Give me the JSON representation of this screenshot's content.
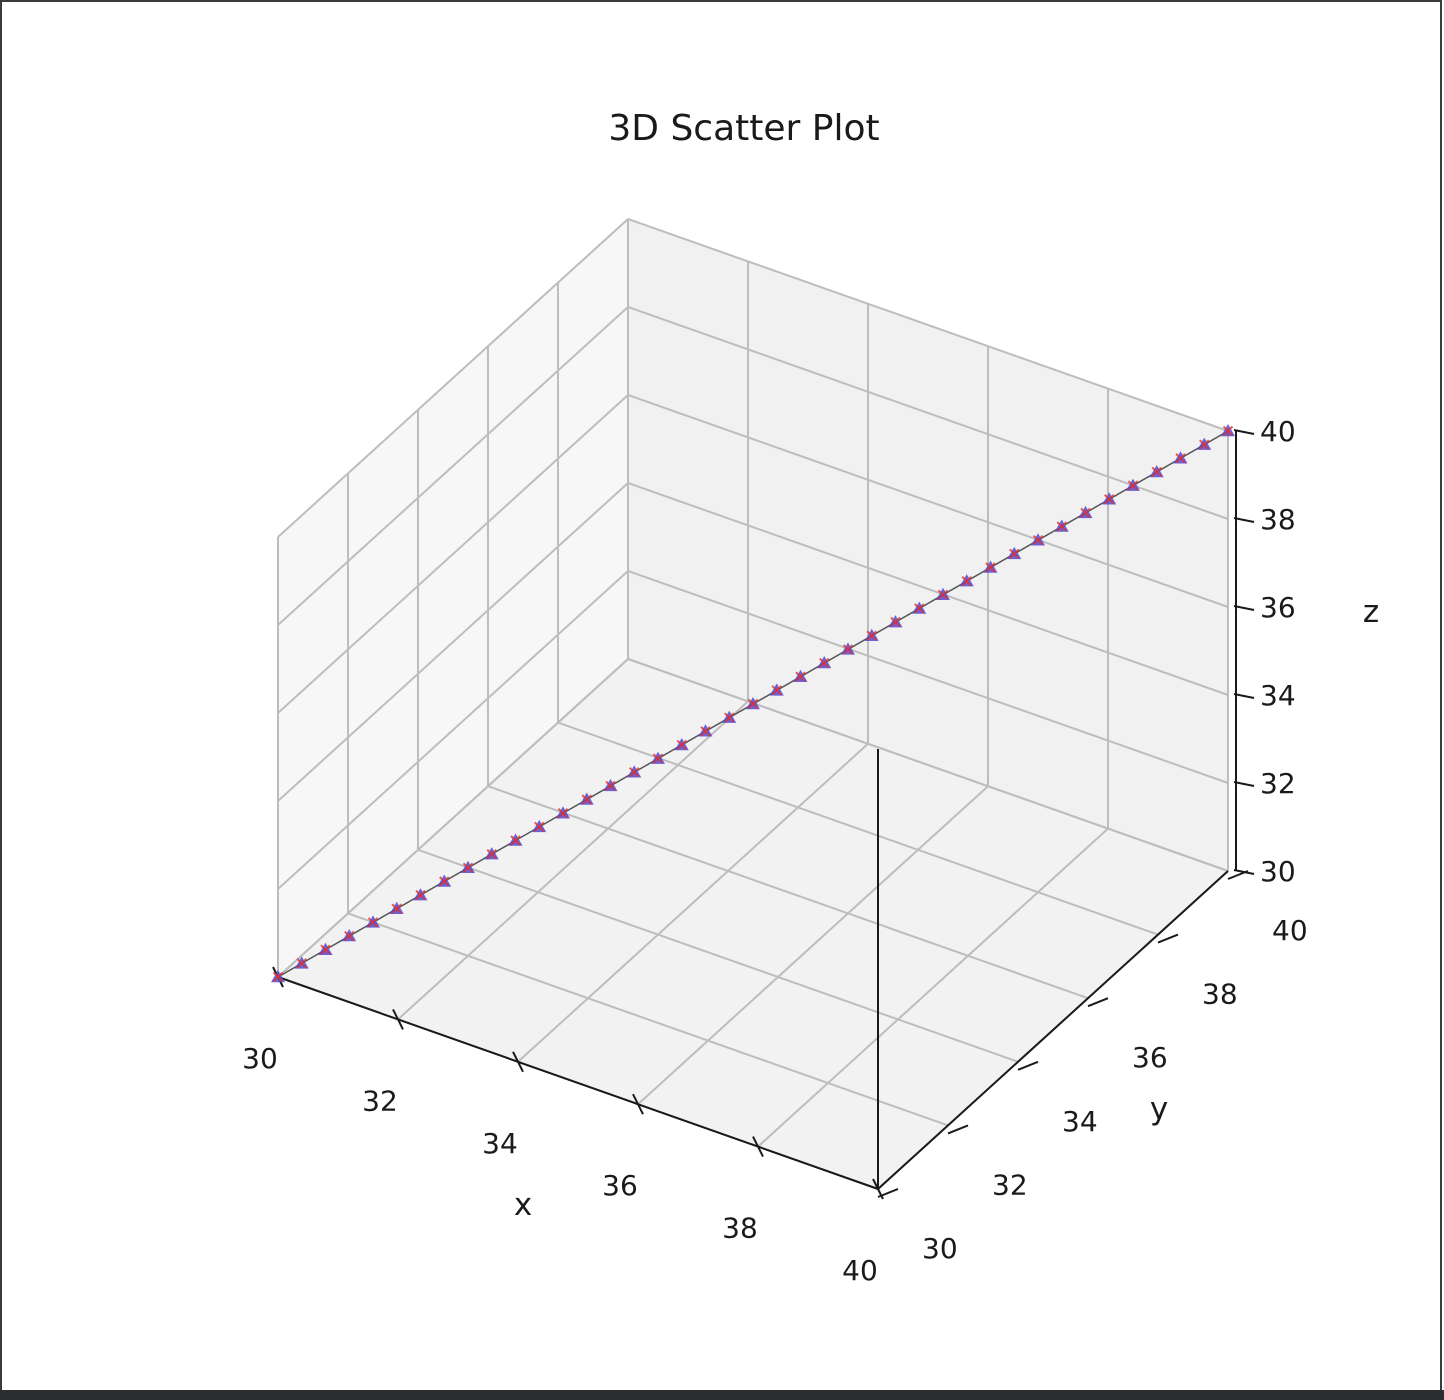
{
  "chart_data": {
    "type": "scatter",
    "title": "3D Scatter Plot",
    "xlabel": "x",
    "ylabel": "y",
    "zlabel": "z",
    "xlim": [
      30,
      40
    ],
    "ylim": [
      30,
      40
    ],
    "zlim": [
      30,
      40
    ],
    "xticks": [
      "30",
      "32",
      "34",
      "36",
      "38",
      "40"
    ],
    "yticks": [
      "30",
      "32",
      "34",
      "36",
      "38",
      "40"
    ],
    "zticks": [
      "30",
      "32",
      "34",
      "36",
      "38",
      "40"
    ],
    "grid": true,
    "series": [
      {
        "marker": "triangle",
        "color": "#4b4bdc",
        "x": [
          30.0,
          30.25,
          30.5,
          30.75,
          31.0,
          31.25,
          31.5,
          31.75,
          32.0,
          32.25,
          32.5,
          32.75,
          33.0,
          33.25,
          33.5,
          33.75,
          34.0,
          34.25,
          34.5,
          34.75,
          35.0,
          35.25,
          35.5,
          35.75,
          36.0,
          36.25,
          36.5,
          36.75,
          37.0,
          37.25,
          37.5,
          37.75,
          38.0,
          38.25,
          38.5,
          38.75,
          39.0,
          39.25,
          39.5,
          39.75,
          40.0
        ],
        "y": [
          30.0,
          30.25,
          30.5,
          30.75,
          31.0,
          31.25,
          31.5,
          31.75,
          32.0,
          32.25,
          32.5,
          32.75,
          33.0,
          33.25,
          33.5,
          33.75,
          34.0,
          34.25,
          34.5,
          34.75,
          35.0,
          35.25,
          35.5,
          35.75,
          36.0,
          36.25,
          36.5,
          36.75,
          37.0,
          37.25,
          37.5,
          37.75,
          38.0,
          38.25,
          38.5,
          38.75,
          39.0,
          39.25,
          39.5,
          39.75,
          40.0
        ],
        "z": [
          30.0,
          30.25,
          30.5,
          30.75,
          31.0,
          31.25,
          31.5,
          31.75,
          32.0,
          32.25,
          32.5,
          32.75,
          33.0,
          33.25,
          33.5,
          33.75,
          34.0,
          34.25,
          34.5,
          34.75,
          35.0,
          35.25,
          35.5,
          35.75,
          36.0,
          36.25,
          36.5,
          36.75,
          37.0,
          37.25,
          37.5,
          37.75,
          38.0,
          38.25,
          38.5,
          38.75,
          39.0,
          39.25,
          39.5,
          39.75,
          40.0
        ]
      },
      {
        "marker": "x",
        "color": "#e03030",
        "x": [
          30.0,
          30.25,
          30.5,
          30.75,
          31.0,
          31.25,
          31.5,
          31.75,
          32.0,
          32.25,
          32.5,
          32.75,
          33.0,
          33.25,
          33.5,
          33.75,
          34.0,
          34.25,
          34.5,
          34.75,
          35.0,
          35.25,
          35.5,
          35.75,
          36.0,
          36.25,
          36.5,
          36.75,
          37.0,
          37.25,
          37.5,
          37.75,
          38.0,
          38.25,
          38.5,
          38.75,
          39.0,
          39.25,
          39.5,
          39.75,
          40.0
        ],
        "y": [
          30.0,
          30.25,
          30.5,
          30.75,
          31.0,
          31.25,
          31.5,
          31.75,
          32.0,
          32.25,
          32.5,
          32.75,
          33.0,
          33.25,
          33.5,
          33.75,
          34.0,
          34.25,
          34.5,
          34.75,
          35.0,
          35.25,
          35.5,
          35.75,
          36.0,
          36.25,
          36.5,
          36.75,
          37.0,
          37.25,
          37.5,
          37.75,
          38.0,
          38.25,
          38.5,
          38.75,
          39.0,
          39.25,
          39.5,
          39.75,
          40.0
        ],
        "z": [
          30.0,
          30.25,
          30.5,
          30.75,
          31.0,
          31.25,
          31.5,
          31.75,
          32.0,
          32.25,
          32.5,
          32.75,
          33.0,
          33.25,
          33.5,
          33.75,
          34.0,
          34.25,
          34.5,
          34.75,
          35.0,
          35.25,
          35.5,
          35.75,
          36.0,
          36.25,
          36.5,
          36.75,
          37.0,
          37.25,
          37.5,
          37.75,
          38.0,
          38.25,
          38.5,
          38.75,
          39.0,
          39.25,
          39.5,
          39.75,
          40.0
        ]
      }
    ],
    "line": {
      "color": "#555555",
      "from": [
        30,
        30,
        30
      ],
      "to": [
        40,
        40,
        40
      ]
    }
  }
}
